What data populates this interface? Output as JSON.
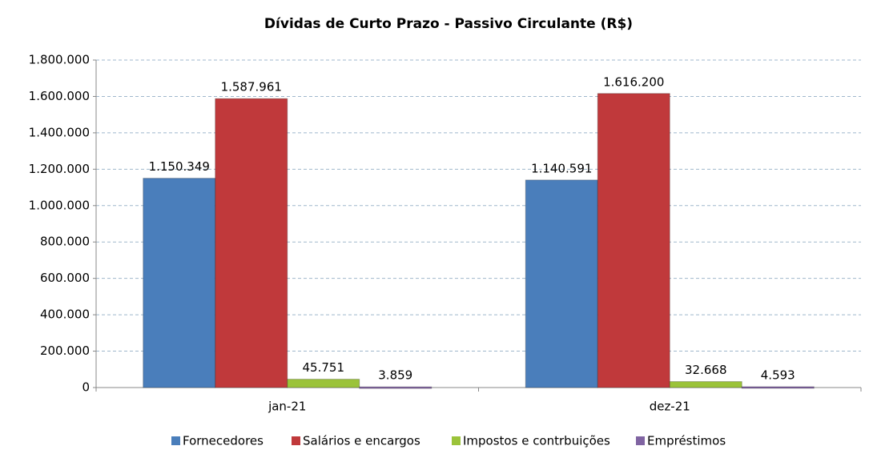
{
  "chart_data": {
    "type": "bar",
    "title": "Dívidas de Curto Prazo - Passivo Circulante (R$)",
    "categories": [
      "jan-21",
      "dez-21"
    ],
    "series": [
      {
        "name": "Fornecedores",
        "color": "#4a7ebb",
        "values": [
          1150349,
          1140591
        ],
        "value_labels": [
          "1.150.349",
          "1.140.591"
        ]
      },
      {
        "name": "Salários e encargos",
        "color": "#c0393b",
        "values": [
          1587961,
          1616200
        ],
        "value_labels": [
          "1.587.961",
          "1.616.200"
        ]
      },
      {
        "name": "Impostos e contrbuições",
        "color": "#9bc33a",
        "values": [
          45751,
          32668
        ],
        "value_labels": [
          "45.751",
          "32.668"
        ]
      },
      {
        "name": "Empréstimos",
        "color": "#8064a2",
        "values": [
          3859,
          4593
        ],
        "value_labels": [
          "3.859",
          "4.593"
        ]
      }
    ],
    "ylim": [
      0,
      1800000
    ],
    "yticks": [
      0,
      {
        "value": 200000,
        "label": "200.000"
      },
      {
        "value": 400000,
        "label": "400.000"
      },
      {
        "value": 600000,
        "label": "600.000"
      },
      {
        "value": 800000,
        "label": "800.000"
      },
      {
        "value": 1000000,
        "label": "1.000.000"
      },
      {
        "value": 1200000,
        "label": "1.200.000"
      },
      {
        "value": 1400000,
        "label": "1.400.000"
      },
      {
        "value": 1600000,
        "label": "1.600.000"
      },
      {
        "value": 1800000,
        "label": "1.800.000"
      }
    ],
    "grid": true,
    "legend": "bottom"
  }
}
